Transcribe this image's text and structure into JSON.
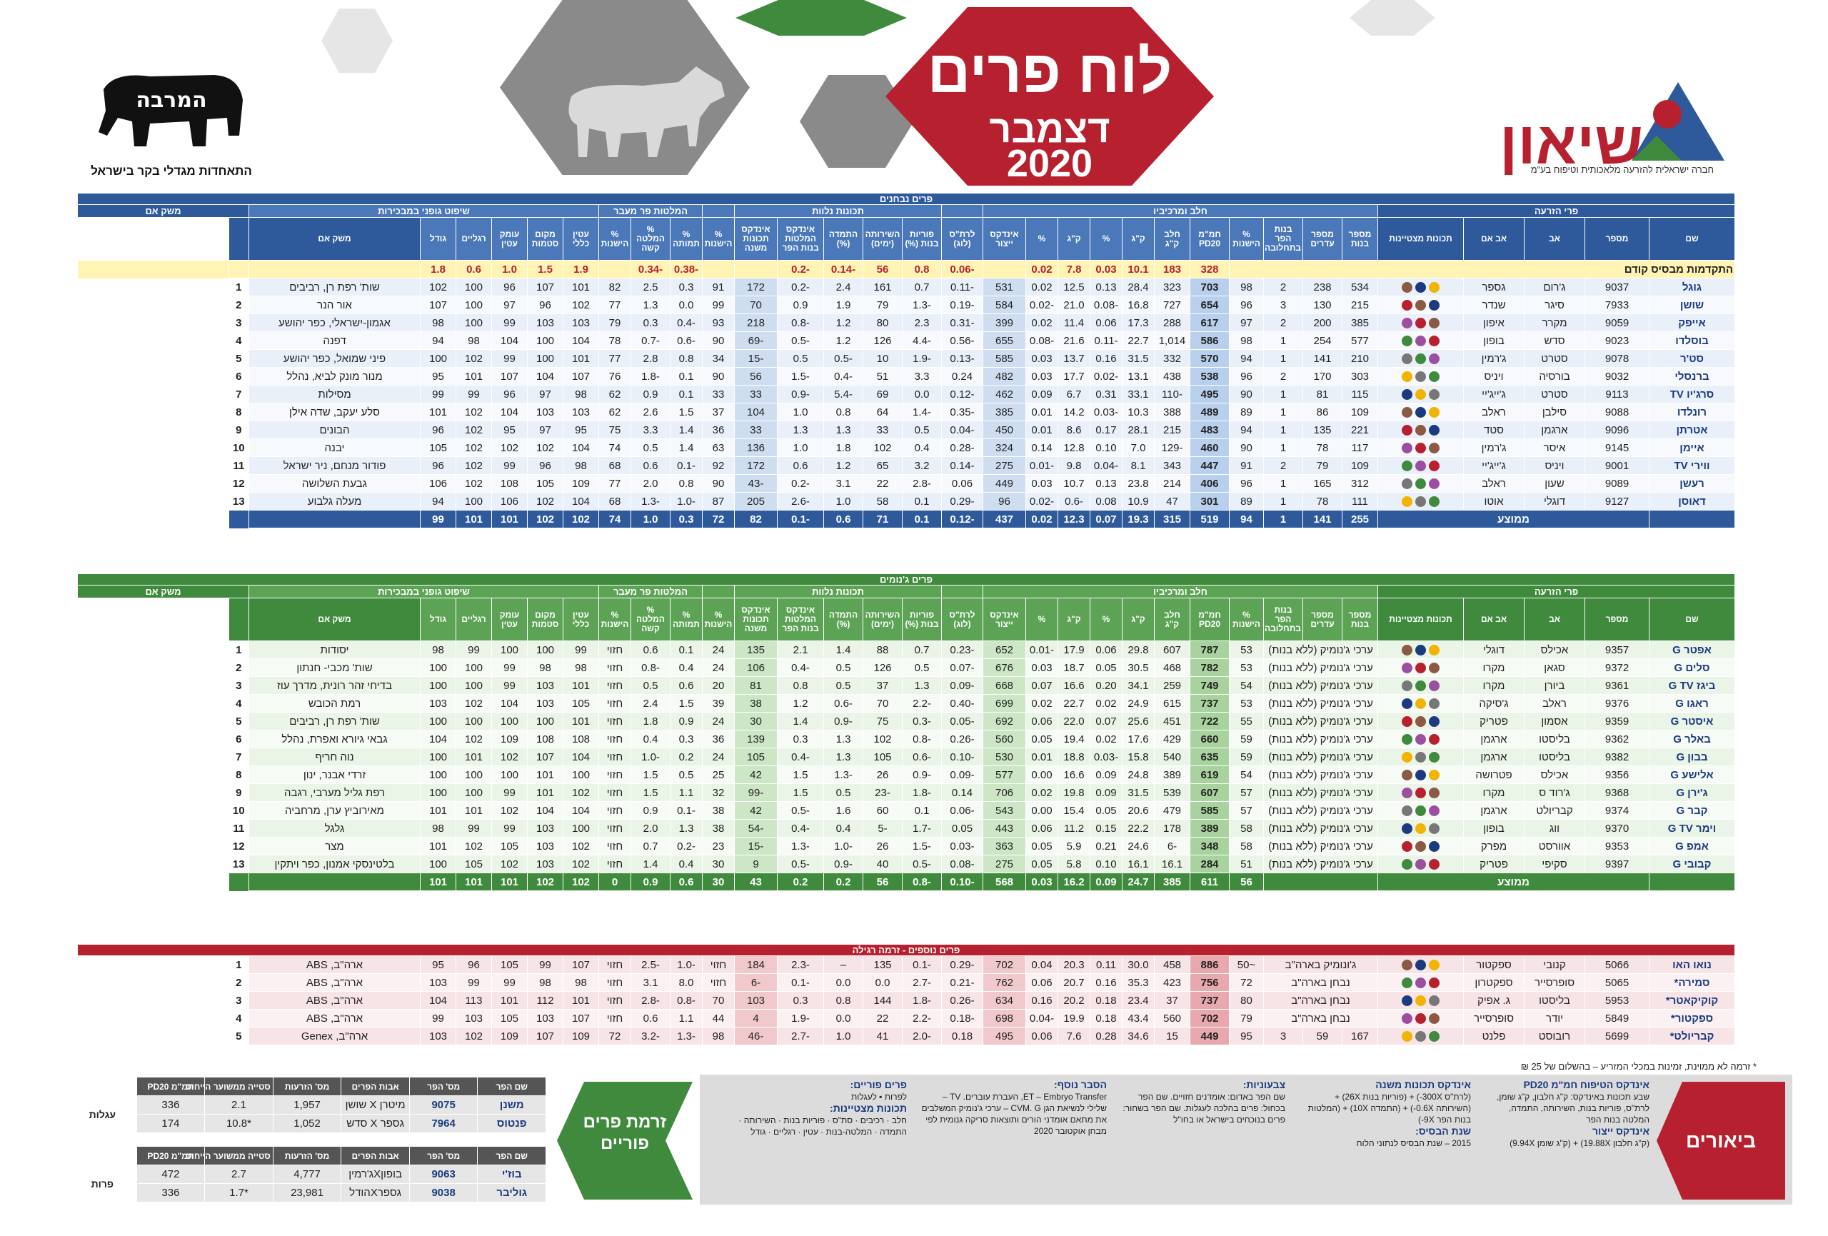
{
  "header": {
    "title": "לוח פרים",
    "month": "דצמבר",
    "year": "2020",
    "org_name": "שיאון",
    "org_sub": "חברה ישראלית להזרעה מלאכותית וטיפוח בע\"מ",
    "assoc_logo": "המרבה",
    "assoc_sub": "התאחדות מגדלי בקר בישראל"
  },
  "colors": {
    "blue": "#2e5a9c",
    "green": "#3f8a3c",
    "red": "#b7202e",
    "gray": "#9a9a9a"
  },
  "tested": {
    "band": "פרים נבחנים",
    "group_sire": "פרי הזרעה",
    "group_parents": "אבות הפר",
    "group_milk": "חלב ומרכיביו",
    "group_functional": "תכונות נלוות",
    "group_calving": "המלטות פר מעבר",
    "group_linear": "שיפוט גופני במבכירות",
    "farm_header": "משק אם",
    "fat": "שומן",
    "protein": "חלבון",
    "cols": [
      "שם",
      "מספר",
      "אב",
      "אב אם",
      "תכונות מצטיינות",
      "מספר בנות",
      "מספר עדרים",
      "בנות הפר בתחלובה",
      "% הישנות",
      "חמ\"מ PD20",
      "חלב ק\"ג",
      "ק\"ג",
      "%",
      "ק\"ג",
      "%",
      "אינדקס ייצור",
      "לרת\"ס (לוג)",
      "פוריות בנות (%)",
      "השירותה (ימים)",
      "התמדה (%)",
      "אינדקס המלטות בנות הפר",
      "אינדקס תכונות משנה",
      "% הישנות",
      "% תמותה",
      "% המלטה קשה",
      "% הישנות",
      "עטין כללי",
      "מקום סטמות",
      "עומק עטין",
      "רגליים",
      "גודל"
    ],
    "advantage_label": "התקדמות מבסיס קודם",
    "advantage": [
      "328",
      "183",
      "10.1",
      "0.03",
      "7.8",
      "0.02",
      "",
      "-0.06",
      "0.8",
      "56",
      "-0.14",
      "-0.2",
      "",
      "",
      "-0.38",
      "-0.34",
      "",
      "1.9",
      "1.5",
      "1.0",
      "0.6",
      "1.8"
    ],
    "rows": [
      [
        "גוגל",
        "9037",
        "ג'רום",
        "גספר",
        "",
        "534",
        "238",
        "2",
        "98",
        "703",
        "323",
        "28.4",
        "0.13",
        "12.5",
        "0.02",
        "531",
        "-0.11",
        "0.7",
        "161",
        "2.4",
        "-0.2",
        "172",
        "91",
        "0.3",
        "2.5",
        "82",
        "101",
        "107",
        "96",
        "100",
        "102",
        "שות' רפת רן, רביבים"
      ],
      [
        "שושן",
        "7933",
        "סיגר",
        "שנדר",
        "",
        "215",
        "130",
        "3",
        "96",
        "654",
        "727",
        "16.8",
        "-0.08",
        "21.0",
        "-0.02",
        "584",
        "-0.19",
        "-1.3",
        "79",
        "1.9",
        "0.9",
        "70",
        "99",
        "0.0",
        "1.3",
        "77",
        "102",
        "96",
        "97",
        "100",
        "107",
        "אור הנר"
      ],
      [
        "אייפק",
        "9059",
        "מקרר",
        "איפון",
        "",
        "385",
        "200",
        "2",
        "97",
        "617",
        "288",
        "17.3",
        "0.06",
        "11.4",
        "0.02",
        "399",
        "-0.31",
        "2.3",
        "80",
        "1.2",
        "-0.8",
        "218",
        "93",
        "-0.4",
        "0.3",
        "79",
        "103",
        "103",
        "99",
        "100",
        "98",
        "אגמון-ישראלי, כפר יהושע"
      ],
      [
        "בוסלדו",
        "9023",
        "סדש",
        "בופון",
        "",
        "577",
        "254",
        "1",
        "98",
        "586",
        "1,014",
        "22.7",
        "-0.11",
        "21.6",
        "-0.08",
        "655",
        "-0.56",
        "-4.4",
        "126",
        "1.2",
        "-0.5",
        "-69",
        "90",
        "-0.6",
        "-0.7",
        "78",
        "104",
        "100",
        "104",
        "98",
        "94",
        "דפנה"
      ],
      [
        "סט'ר",
        "9078",
        "סטרט",
        "ג'רמין",
        "",
        "210",
        "141",
        "1",
        "94",
        "570",
        "332",
        "31.5",
        "0.16",
        "13.7",
        "0.03",
        "585",
        "-0.13",
        "-1.9",
        "10",
        "-0.5",
        "0.5",
        "-15",
        "34",
        "0.8",
        "2.8",
        "77",
        "101",
        "100",
        "99",
        "102",
        "100",
        "פיני שמואל, כפר יהושע"
      ],
      [
        "ברנסלי",
        "9032",
        "בורסיה",
        "ויניס",
        "",
        "303",
        "170",
        "2",
        "96",
        "538",
        "438",
        "13.1",
        "-0.02",
        "17.7",
        "0.03",
        "482",
        "0.24",
        "3.3",
        "51",
        "-0.4",
        "-1.5",
        "56",
        "90",
        "0.1",
        "-1.8",
        "76",
        "107",
        "104",
        "107",
        "101",
        "95",
        "מנור מונק לביא, נהלל"
      ],
      [
        "סרג'יו TV",
        "9113",
        "סטרט",
        "ג'ייג'יי",
        "",
        "115",
        "81",
        "1",
        "90",
        "495",
        "-110",
        "33.1",
        "0.31",
        "6.7",
        "0.09",
        "462",
        "-0.12",
        "0.0",
        "69",
        "-5.4",
        "-0.9",
        "33",
        "33",
        "0.1",
        "0.9",
        "62",
        "98",
        "97",
        "96",
        "99",
        "99",
        "מסילות"
      ],
      [
        "רונלדו",
        "9088",
        "סילבן",
        "ראלב",
        "",
        "109",
        "86",
        "1",
        "89",
        "489",
        "388",
        "10.3",
        "-0.03",
        "14.2",
        "0.01",
        "385",
        "-0.35",
        "-1.4",
        "64",
        "0.8",
        "1.0",
        "104",
        "37",
        "1.5",
        "2.6",
        "62",
        "103",
        "103",
        "104",
        "102",
        "101",
        "סלע יעקב, שדה אילן"
      ],
      [
        "אטרתן",
        "9096",
        "ארגמן",
        "סטד",
        "",
        "221",
        "135",
        "1",
        "94",
        "483",
        "215",
        "28.1",
        "0.17",
        "8.6",
        "0.01",
        "450",
        "-0.04",
        "0.5",
        "33",
        "1.3",
        "1.3",
        "33",
        "36",
        "1.4",
        "3.3",
        "75",
        "95",
        "97",
        "95",
        "102",
        "96",
        "הבונים"
      ],
      [
        "איימן",
        "9145",
        "איסר",
        "ג'רמין",
        "",
        "117",
        "78",
        "1",
        "90",
        "460",
        "-129",
        "7.0",
        "0.10",
        "12.8",
        "0.14",
        "324",
        "-0.28",
        "0.4",
        "102",
        "1.8",
        "1.0",
        "136",
        "63",
        "1.4",
        "0.5",
        "74",
        "104",
        "102",
        "102",
        "102",
        "105",
        "יבנה"
      ],
      [
        "ווירי TV",
        "9001",
        "ויניס",
        "ג'ייג'יי",
        "",
        "109",
        "79",
        "2",
        "91",
        "447",
        "343",
        "8.1",
        "-0.04",
        "9.8",
        "-0.01",
        "275",
        "-0.14",
        "3.2",
        "65",
        "1.2",
        "0.6",
        "172",
        "92",
        "-0.1",
        "0.6",
        "68",
        "98",
        "96",
        "99",
        "102",
        "96",
        "פודור מנחם, ניר ישראל"
      ],
      [
        "רעשן",
        "9089",
        "שעון",
        "ראלב",
        "",
        "312",
        "165",
        "1",
        "96",
        "406",
        "214",
        "23.8",
        "0.13",
        "10.7",
        "0.03",
        "449",
        "0.06",
        "-2.8",
        "22",
        "3.1",
        "-0.2",
        "-43",
        "90",
        "0.8",
        "2.0",
        "77",
        "109",
        "105",
        "108",
        "102",
        "106",
        "גבעת השלושה"
      ],
      [
        "דאוסן",
        "9127",
        "דוגלי",
        "אוטו",
        "",
        "111",
        "78",
        "1",
        "89",
        "301",
        "47",
        "10.9",
        "0.08",
        "-0.6",
        "-0.02",
        "96",
        "-0.29",
        "0.1",
        "58",
        "1.0",
        "-2.6",
        "205",
        "87",
        "-1.0",
        "-1.3",
        "68",
        "104",
        "102",
        "106",
        "100",
        "94",
        "מעלה גלבוע"
      ]
    ],
    "average_label": "ממוצע",
    "average": [
      "255",
      "141",
      "1",
      "94",
      "519",
      "315",
      "19.3",
      "0.07",
      "12.3",
      "0.02",
      "437",
      "-0.12",
      "0.1",
      "71",
      "0.6",
      "-0.1",
      "82",
      "72",
      "0.3",
      "1.0",
      "74",
      "102",
      "102",
      "101",
      "101",
      "99"
    ]
  },
  "genomic": {
    "band": "פרים ג'נומים",
    "note_text": "ערכי ג'נומיק (ללא בנות)",
    "average_label": "ממוצע",
    "rows": [
      [
        "אפטר G",
        "9357",
        "אכילס",
        "דוגלי",
        "53",
        "787",
        "607",
        "29.8",
        "0.06",
        "17.9",
        "-0.01",
        "652",
        "-0.23",
        "0.7",
        "88",
        "1.4",
        "2.1",
        "135",
        "24",
        "0.1",
        "0.6",
        "חזוי",
        "99",
        "100",
        "100",
        "99",
        "98",
        "יסודות"
      ],
      [
        "סלים G",
        "9372",
        "סגאן",
        "מקרו",
        "53",
        "782",
        "468",
        "30.5",
        "0.05",
        "18.7",
        "0.03",
        "676",
        "-0.07",
        "0.5",
        "126",
        "0.5",
        "-0.4",
        "106",
        "24",
        "0.4",
        "-0.8",
        "חזוי",
        "98",
        "98",
        "99",
        "100",
        "100",
        "שות' מכבי- חנתון"
      ],
      [
        "ביגז G TV",
        "9361",
        "ביורן",
        "מקרו",
        "54",
        "749",
        "259",
        "34.1",
        "0.20",
        "16.6",
        "0.07",
        "668",
        "-0.09",
        "1.3",
        "37",
        "0.5",
        "0.8",
        "81",
        "20",
        "0.6",
        "0.5",
        "חזוי",
        "101",
        "103",
        "99",
        "100",
        "100",
        "בדיחי זהר רונית, מדרך עוז"
      ],
      [
        "ראגו G",
        "9376",
        "ראלב",
        "ג'סיקה",
        "53",
        "737",
        "615",
        "24.9",
        "0.02",
        "22.7",
        "0.02",
        "699",
        "-0.40",
        "-2.2",
        "70",
        "-0.6",
        "1.2",
        "38",
        "39",
        "1.5",
        "2.4",
        "חזוי",
        "105",
        "103",
        "104",
        "102",
        "103",
        "רמת הכובש"
      ],
      [
        "איסטר G",
        "9359",
        "אסמון",
        "פטריק",
        "55",
        "722",
        "451",
        "25.6",
        "0.07",
        "22.0",
        "0.06",
        "692",
        "-0.05",
        "-0.3",
        "75",
        "-0.9",
        "1.4",
        "30",
        "24",
        "0.9",
        "1.8",
        "חזוי",
        "101",
        "100",
        "100",
        "100",
        "100",
        "שות' רפת רן, רביבים"
      ],
      [
        "באלר G",
        "9362",
        "בליסטו",
        "ארגמן",
        "59",
        "660",
        "429",
        "17.6",
        "0.02",
        "19.4",
        "0.05",
        "560",
        "-0.26",
        "-0.8",
        "102",
        "1.3",
        "0.3",
        "139",
        "36",
        "0.3",
        "0.4",
        "חזוי",
        "108",
        "108",
        "109",
        "102",
        "104",
        "גבאי גיורא ואפרת, נהלל"
      ],
      [
        "בבון G",
        "9382",
        "בליסטו",
        "ארגמן",
        "59",
        "635",
        "540",
        "15.8",
        "-0.03",
        "18.8",
        "0.01",
        "530",
        "-0.10",
        "-0.6",
        "105",
        "1.3",
        "-0.4",
        "105",
        "24",
        "0.2",
        "-1.0",
        "חזוי",
        "104",
        "107",
        "102",
        "101",
        "100",
        "נוה חריף"
      ],
      [
        "אלישע G",
        "9356",
        "אכילס",
        "פטרושה",
        "54",
        "619",
        "389",
        "24.8",
        "0.09",
        "16.6",
        "0.00",
        "577",
        "-0.09",
        "-0.9",
        "26",
        "-1.3",
        "1.5",
        "42",
        "25",
        "0.5",
        "1.5",
        "חזוי",
        "100",
        "101",
        "100",
        "100",
        "100",
        "זרדי אבנר, ינון"
      ],
      [
        "ג'ירן G",
        "9368",
        "ג'רוד ס",
        "מקרו",
        "57",
        "607",
        "539",
        "31.5",
        "0.09",
        "19.8",
        "0.02",
        "706",
        "0.14",
        "-1.8",
        "-23",
        "0.5",
        "1.5",
        "-99",
        "32",
        "1.1",
        "1.5",
        "חזוי",
        "102",
        "101",
        "99",
        "100",
        "100",
        "רפת גליל מערבי, רגבה"
      ],
      [
        "קבר G",
        "9374",
        "קבריולט",
        "ארגמן",
        "57",
        "585",
        "479",
        "20.6",
        "0.05",
        "15.4",
        "0.00",
        "543",
        "-0.06",
        "0.1",
        "60",
        "1.6",
        "-0.5",
        "42",
        "38",
        "-0.1",
        "0.9",
        "חזוי",
        "104",
        "104",
        "102",
        "101",
        "101",
        "מאירוביץ ערן, מרחביה"
      ],
      [
        "וימר G TV",
        "9370",
        "ווג",
        "בופון",
        "58",
        "389",
        "178",
        "22.2",
        "0.15",
        "11.2",
        "0.06",
        "443",
        "0.05",
        "-1.7",
        "-5",
        "0.4",
        "-0.4",
        "-54",
        "38",
        "1.3",
        "2.0",
        "חזוי",
        "100",
        "103",
        "99",
        "99",
        "98",
        "גלגל"
      ],
      [
        "אמפ G",
        "9353",
        "אוורסט",
        "מפרק",
        "58",
        "348",
        "-6",
        "24.6",
        "0.21",
        "5.9",
        "0.05",
        "363",
        "-0.03",
        "-1.5",
        "26",
        "-1.0",
        "-1.3",
        "-15",
        "23",
        "-0.2",
        "0.7",
        "חזוי",
        "102",
        "103",
        "105",
        "102",
        "101",
        "מצר"
      ],
      [
        "קבובי G",
        "9397",
        "סקיפי",
        "פטריק",
        "51",
        "284",
        "16.1",
        "16.1",
        "0.10",
        "5.8",
        "0.05",
        "275",
        "-0.08",
        "-0.5",
        "40",
        "-0.9",
        "-0.5",
        "9",
        "30",
        "0.4",
        "1.4",
        "חזוי",
        "102",
        "103",
        "102",
        "105",
        "100",
        "בלטינסקי אמנון, כפר ויתקין"
      ]
    ],
    "average": [
      "56",
      "611",
      "385",
      "24.7",
      "0.09",
      "16.2",
      "0.03",
      "568",
      "-0.10",
      "-0.8",
      "56",
      "0.2",
      "0.2",
      "43",
      "30",
      "0.6",
      "0.9",
      "0",
      "102",
      "102",
      "101",
      "101",
      "101"
    ]
  },
  "extra": {
    "band": "פרים נוספים - זרמה רגילה",
    "rows": [
      [
        "נואו האו",
        "5066",
        "קנובי",
        "ספקטור",
        "",
        "~50",
        "ג'ונומיק בארה\"ב",
        "886",
        "458",
        "30.0",
        "0.11",
        "20.3",
        "0.04",
        "702",
        "-0.29",
        "-0.1",
        "135",
        "–",
        "-2.3",
        "184",
        "חזוי",
        "-1.0",
        "-2.5",
        "חזוי",
        "107",
        "99",
        "105",
        "96",
        "95",
        "ארה\"ב, ABS"
      ],
      [
        "סמירה*",
        "5065",
        "סופרסייר",
        "ספקטרון",
        "",
        "72",
        "נבחן בארה\"ב",
        "756",
        "423",
        "35.3",
        "0.16",
        "20.7",
        "0.06",
        "762",
        "-0.21",
        "-2.7",
        "0.0",
        "0.0",
        "-0.1",
        "-6",
        "חזוי",
        "8.0",
        "3.1",
        "חזוי",
        "98",
        "98",
        "99",
        "99",
        "103",
        "ארה\"ב, ABS"
      ],
      [
        "קוקיקאטר*",
        "5953",
        "בליסטו",
        "ג. אפיק",
        "",
        "80",
        "נבחן בארה\"ב",
        "737",
        "37",
        "23.4",
        "0.18",
        "20.2",
        "0.16",
        "634",
        "-0.26",
        "-1.8",
        "144",
        "0.8",
        "0.3",
        "103",
        "70",
        "-0.8",
        "-2.8",
        "חזוי",
        "101",
        "112",
        "101",
        "113",
        "104",
        "ארה\"ב, ABS"
      ],
      [
        "ספקטור*",
        "5849",
        "יודר",
        "סופרסייר",
        "",
        "79",
        "נבחן בארה\"ב",
        "702",
        "560",
        "43.4",
        "0.18",
        "19.9",
        "-0.04",
        "698",
        "-0.18",
        "-2.2",
        "22",
        "0.0",
        "-1.9",
        "4",
        "44",
        "1.1",
        "0.6",
        "חזוי",
        "107",
        "103",
        "105",
        "103",
        "99",
        "ארה\"ב, ABS"
      ],
      [
        "קבריולט*",
        "5699",
        "רובוסט",
        "פלנט",
        "",
        "95",
        "",
        "449",
        "15",
        "34.6",
        "0.28",
        "7.6",
        "0.06",
        "495",
        "0.18",
        "-2.0",
        "41",
        "1.0",
        "-2.7",
        "-46",
        "98",
        "-1.3",
        "-3.2",
        "72",
        "109",
        "107",
        "109",
        "102",
        "103",
        "ארה\"ב, Genex"
      ]
    ],
    "extra_counts": [
      "167",
      "59",
      "3"
    ]
  },
  "footnote": "* זרמה לא ממוינת, זמינות במכלי המזריע – בהשלום של 25 ₪",
  "legend": {
    "tab": "ביאורים",
    "c1_title": "אינדקס הטיפוח חמ\"מ PD20",
    "c1_body": "שבע תכונות באינדקס: ק\"ג חלבון, ק\"ג שומן, לרת\"ס, פוריות בנות, השירותה, התמדה, המלטה בנות הפר",
    "c1b_title": "אינדקס ייצור",
    "c1b_body": "(ק\"ג חלבון 19.88X) + (ק\"ג שומן 9.94X)",
    "c2_title": "אינדקס תכונות משנה",
    "c2_body": "(לרת\"ס 300X-) + (פוריות בנות 26X) + (השירותה 0.6X-) + (התמדה 10X) + (המלטות בנות הפר 9X-)",
    "c2b_title": "שנת הבסיס:",
    "c2b_body": "2015 – שנת הבסיס לנתוני הלוח",
    "c3_title": "צבעוניות:",
    "c3_body": "שם הפר באדום: אומדנים חזויים. שם הפר בכחול: פרים בהלכה לעגלות. שם הפר בשחור: פרים בנוכחים בישראל או בחו\"ל",
    "c4_title": "הסבר נוסף:",
    "c4_body": "ET – Embryo Transfer, העברת עוברים. TV – שלילי לנשיאת הגן CVM. G – ערכי ג'נומיק המשלבים את מתאם אומדני הורים ותוצאות סריקה גנומית לפי מבחן אוקטובר 2020",
    "c5_title": "פרים פוריים:",
    "c5_body": "לפרות ▪ לעגלות",
    "c5b_title": "תכונות מצטיינות:",
    "c5b_body": "חלב · רכיבים · סת\"ס · פוריות בנות · השירותה · התמדה · המלטה-בנות · עטין · רגליים · גודל"
  },
  "semen": {
    "tab": "זרמת פרים פוריים",
    "heifers_label": "עגלות",
    "cows_label": "פרות",
    "cols": [
      "שם הפר",
      "מס' הפר",
      "אבות הפרים",
      "מס' הזרעות",
      "סטייה ממשוער הייחוס",
      "חמ\"מ PD20"
    ],
    "heifers": [
      [
        "משנן",
        "9075",
        "מיטרן X שושן",
        "1,957",
        "2.1",
        "336"
      ],
      [
        "פנטוס",
        "7964",
        "גספר X סדש",
        "1,052",
        "*10.8",
        "174"
      ]
    ],
    "cows": [
      [
        "בוז'י",
        "9063",
        "בופוןXג'רמין",
        "4,777",
        "2.7",
        "472"
      ],
      [
        "גוליבר",
        "9038",
        "גספרXהודל",
        "23,981",
        "*1.7",
        "336"
      ]
    ]
  }
}
